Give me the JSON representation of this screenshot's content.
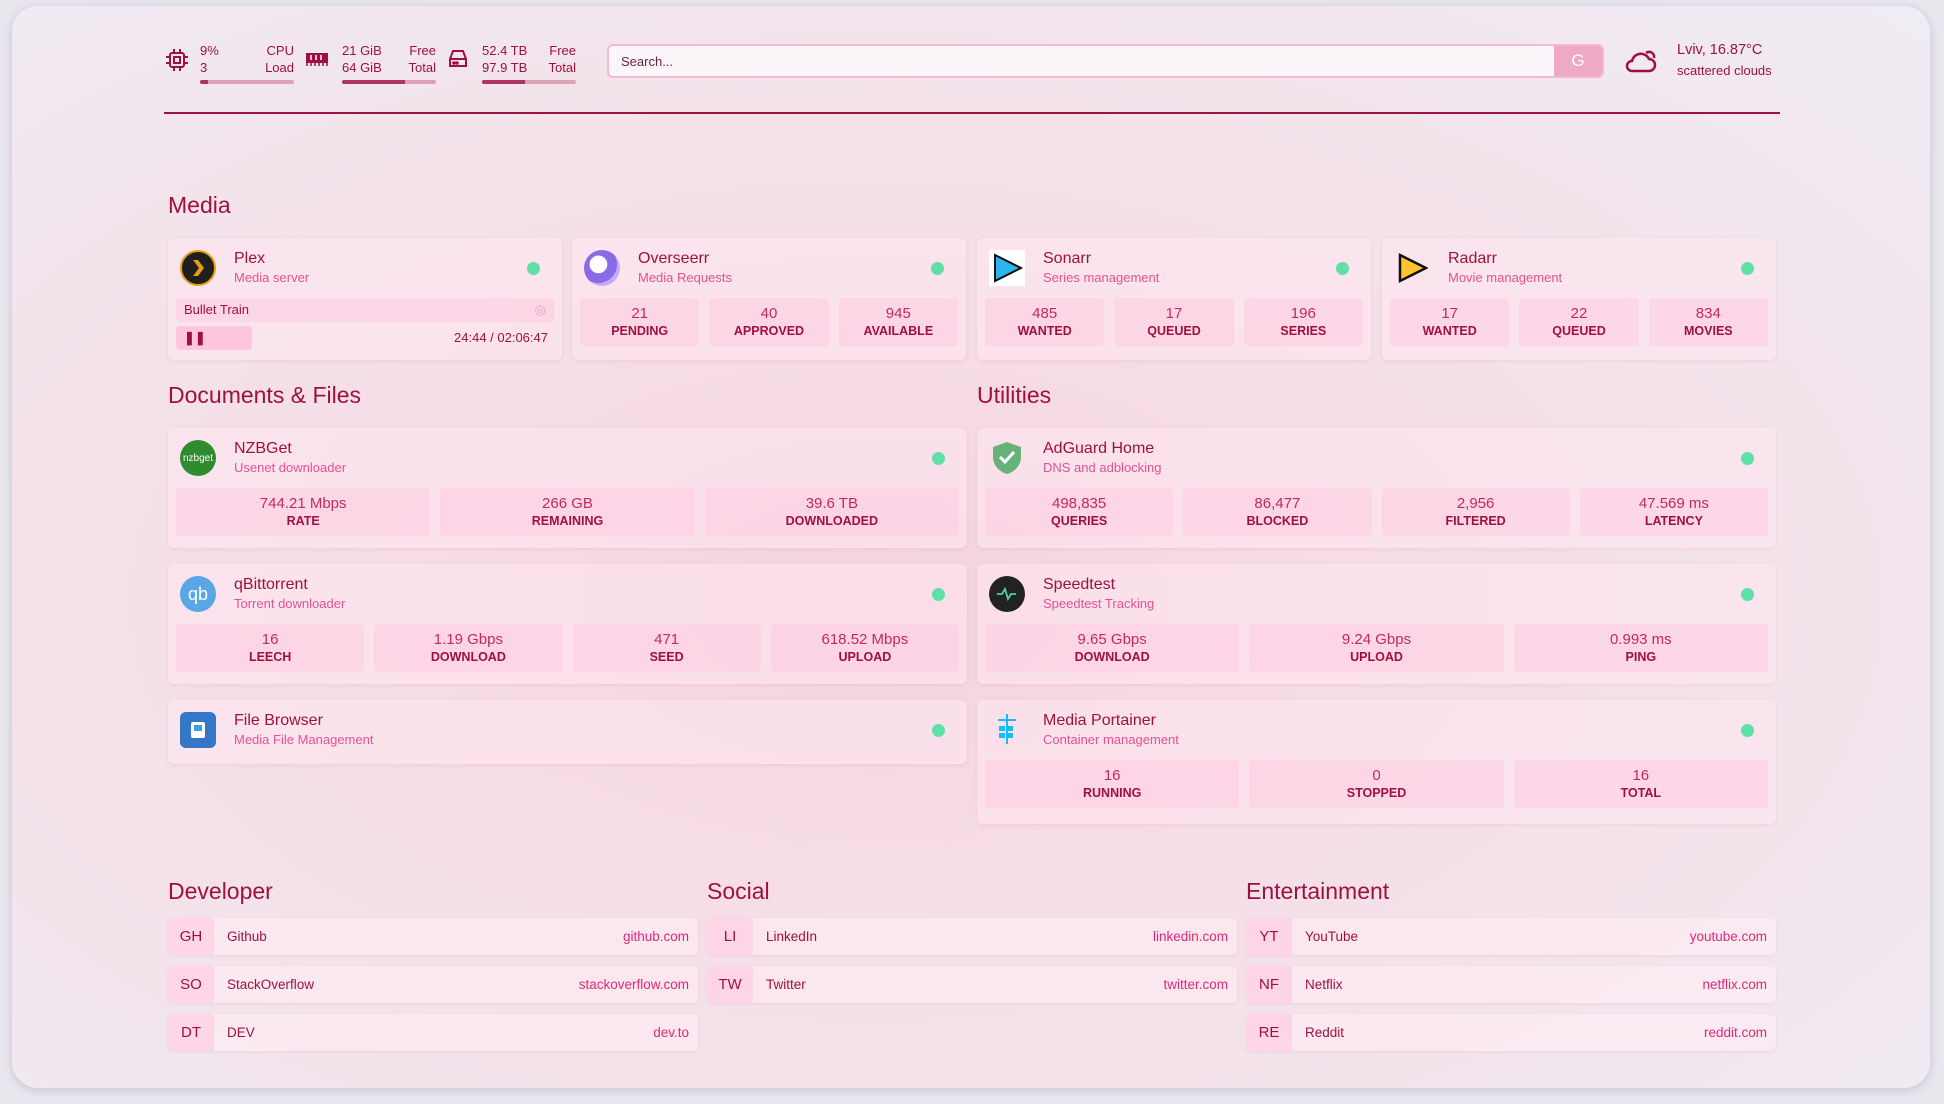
{
  "header": {
    "cpu": {
      "icon": "cpu-icon",
      "value": "9%",
      "label1": "CPU",
      "value2": "3",
      "label2": "Load",
      "percent": 9
    },
    "memory": {
      "icon": "memory-icon",
      "value": "21 GiB",
      "label1": "Free",
      "value2": "64 GiB",
      "label2": "Total",
      "percent": 67
    },
    "disk": {
      "icon": "hard-drive-icon",
      "value": "52.4 TB",
      "label1": "Free",
      "value2": "97.9 TB",
      "label2": "Total",
      "percent": 46
    },
    "search": {
      "placeholder": "Search...",
      "engine": "G"
    },
    "weather": {
      "icon": "cloud-icon",
      "location": "Lviv, 16.87°C",
      "condition": "scattered clouds"
    }
  },
  "colors": {
    "accent": "#a0103e",
    "subtitle": "#e45291",
    "status_ok": "#5fe0a6"
  },
  "sections": {
    "media": "Media",
    "docs": "Documents & Files",
    "utilities": "Utilities",
    "developer": "Developer",
    "social": "Social",
    "entertainment": "Entertainment"
  },
  "plex": {
    "name": "Plex",
    "desc": "Media server",
    "now_playing": "Bullet Train",
    "time": "24:44 / 02:06:47",
    "progress_percent": 20
  },
  "services": {
    "overseerr": {
      "name": "Overseerr",
      "desc": "Media Requests",
      "stats": [
        {
          "v": "21",
          "l": "PENDING"
        },
        {
          "v": "40",
          "l": "APPROVED"
        },
        {
          "v": "945",
          "l": "AVAILABLE"
        }
      ]
    },
    "sonarr": {
      "name": "Sonarr",
      "desc": "Series management",
      "stats": [
        {
          "v": "485",
          "l": "WANTED"
        },
        {
          "v": "17",
          "l": "QUEUED"
        },
        {
          "v": "196",
          "l": "SERIES"
        }
      ]
    },
    "radarr": {
      "name": "Radarr",
      "desc": "Movie management",
      "stats": [
        {
          "v": "17",
          "l": "WANTED"
        },
        {
          "v": "22",
          "l": "QUEUED"
        },
        {
          "v": "834",
          "l": "MOVIES"
        }
      ]
    },
    "nzbget": {
      "name": "NZBGet",
      "desc": "Usenet downloader",
      "logo": "nzbget",
      "stats": [
        {
          "v": "744.21 Mbps",
          "l": "RATE"
        },
        {
          "v": "266 GB",
          "l": "REMAINING"
        },
        {
          "v": "39.6 TB",
          "l": "DOWNLOADED"
        }
      ]
    },
    "qbittorrent": {
      "name": "qBittorrent",
      "desc": "Torrent downloader",
      "logo": "qb",
      "stats": [
        {
          "v": "16",
          "l": "LEECH"
        },
        {
          "v": "1.19 Gbps",
          "l": "DOWNLOAD"
        },
        {
          "v": "471",
          "l": "SEED"
        },
        {
          "v": "618.52 Mbps",
          "l": "UPLOAD"
        }
      ]
    },
    "filebrowser": {
      "name": "File Browser",
      "desc": "Media File Management",
      "stats": []
    },
    "adguard": {
      "name": "AdGuard Home",
      "desc": "DNS and adblocking",
      "stats": [
        {
          "v": "498,835",
          "l": "QUERIES"
        },
        {
          "v": "86,477",
          "l": "BLOCKED"
        },
        {
          "v": "2,956",
          "l": "FILTERED"
        },
        {
          "v": "47.569 ms",
          "l": "LATENCY"
        }
      ]
    },
    "speedtest": {
      "name": "Speedtest",
      "desc": "Speedtest Tracking",
      "stats": [
        {
          "v": "9.65 Gbps",
          "l": "DOWNLOAD"
        },
        {
          "v": "9.24 Gbps",
          "l": "UPLOAD"
        },
        {
          "v": "0.993 ms",
          "l": "PING"
        }
      ]
    },
    "portainer": {
      "name": "Media Portainer",
      "desc": "Container management",
      "stats": [
        {
          "v": "16",
          "l": "RUNNING"
        },
        {
          "v": "0",
          "l": "STOPPED"
        },
        {
          "v": "16",
          "l": "TOTAL"
        }
      ]
    }
  },
  "bookmarks": {
    "developer": [
      {
        "abbr": "GH",
        "name": "Github",
        "url": "github.com"
      },
      {
        "abbr": "SO",
        "name": "StackOverflow",
        "url": "stackoverflow.com"
      },
      {
        "abbr": "DT",
        "name": "DEV",
        "url": "dev.to"
      }
    ],
    "social": [
      {
        "abbr": "LI",
        "name": "LinkedIn",
        "url": "linkedin.com"
      },
      {
        "abbr": "TW",
        "name": "Twitter",
        "url": "twitter.com"
      }
    ],
    "entertainment": [
      {
        "abbr": "YT",
        "name": "YouTube",
        "url": "youtube.com"
      },
      {
        "abbr": "NF",
        "name": "Netflix",
        "url": "netflix.com"
      },
      {
        "abbr": "RE",
        "name": "Reddit",
        "url": "reddit.com"
      }
    ]
  }
}
